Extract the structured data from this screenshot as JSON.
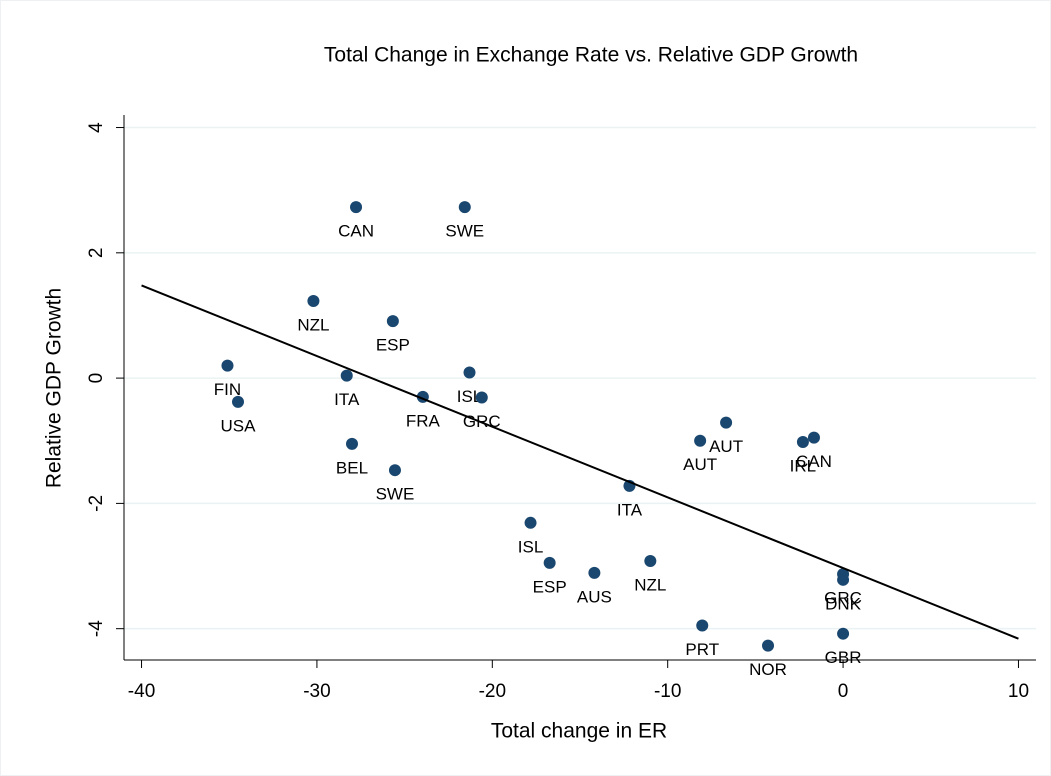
{
  "chart_data": {
    "type": "scatter",
    "title": "Total Change in Exchange Rate vs. Relative GDP Growth",
    "x_label": "Total change in ER",
    "y_label": "Relative GDP Growth",
    "x": [
      -27.77,
      -21.57,
      -30.2,
      -25.67,
      -35.1,
      -34.5,
      -28.3,
      -21.3,
      -20.6,
      -23.96,
      -28.0,
      -25.55,
      -6.67,
      -8.15,
      -2.29,
      -1.66,
      -12.18,
      -17.82,
      -16.73,
      -14.18,
      -10.99,
      0,
      0,
      -8.03,
      -4.28,
      0
    ],
    "y": [
      2.73,
      2.73,
      1.23,
      0.91,
      0.2,
      -0.38,
      0.04,
      0.09,
      -0.31,
      -0.3,
      -1.05,
      -1.47,
      -0.71,
      -1.0,
      -1.02,
      -0.95,
      -1.72,
      -2.31,
      -2.95,
      -3.11,
      -2.92,
      -3.13,
      -3.22,
      -3.95,
      -4.27,
      -4.08
    ],
    "point_labels": [
      "CAN",
      "SWE",
      "NZL",
      "ESP",
      "FIN",
      "USA",
      "ITA",
      "ISL",
      "GRC",
      "FRA",
      "BEL",
      "SWE",
      "AUT",
      "AUT",
      "IRL",
      "CAN",
      "ITA",
      "ISL",
      "ESP",
      "AUS",
      "NZL",
      "GRC",
      "DNK",
      "PRT",
      "NOR",
      "GBR"
    ],
    "color": "#1a476f",
    "fit_line": {
      "x": [
        -40,
        10
      ],
      "y": [
        1.48,
        -4.16
      ],
      "color": "#000000"
    },
    "xlim": [
      -41,
      11
    ],
    "ylim": [
      -4.5,
      4.2
    ],
    "xticks": [
      -40,
      -30,
      -20,
      -10,
      0,
      10
    ],
    "yticks": [
      -4,
      -2,
      0,
      2,
      4
    ],
    "grid": true
  }
}
